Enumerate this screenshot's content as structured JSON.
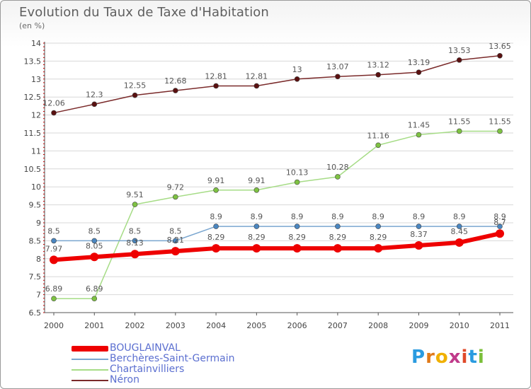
{
  "title": "Evolution du Taux de Taxe d'Habitation",
  "unit_label": "(en %)",
  "logo_text": "Proxiti",
  "chart_data": {
    "type": "line",
    "title": "Evolution du Taux de Taxe d'Habitation",
    "ylabel": "(en %)",
    "xlabel": "",
    "x": [
      "2000",
      "2001",
      "2002",
      "2003",
      "2004",
      "2005",
      "2006",
      "2007",
      "2008",
      "2009",
      "2010",
      "2011"
    ],
    "ylim": [
      6.5,
      14
    ],
    "yticks": [
      6.5,
      7,
      7.5,
      8,
      8.5,
      9,
      9.5,
      10,
      10.5,
      11,
      11.5,
      12,
      12.5,
      13,
      13.5,
      14
    ],
    "grid": "horizontal",
    "legend_position": "bottom-left",
    "series": [
      {
        "name": "Néron",
        "color": "#7a2a2a",
        "point_color": "#5a1010",
        "values": [
          12.06,
          12.3,
          12.55,
          12.68,
          12.81,
          12.81,
          13,
          13.07,
          13.12,
          13.19,
          13.53,
          13.65
        ],
        "labels": [
          "12.06",
          "12.3",
          "12.55",
          "12.68",
          "12.81",
          "12.81",
          "13",
          "13.07",
          "13.12",
          "13.19",
          "13.53",
          "13.65"
        ]
      },
      {
        "name": "Chartainvilliers",
        "color": "#a6dc86",
        "point_color": "#7ec242",
        "values": [
          6.89,
          6.89,
          9.51,
          9.72,
          9.91,
          9.91,
          10.13,
          10.28,
          11.16,
          11.45,
          11.55,
          11.55
        ],
        "labels": [
          "6.89",
          "6.89",
          "9.51",
          "9.72",
          "9.91",
          "9.91",
          "10.13",
          "10.28",
          "11.16",
          "11.45",
          "11.55",
          "11.55"
        ]
      },
      {
        "name": "Berchères-Saint-Germain",
        "color": "#7aa6d0",
        "point_color": "#4a86c0",
        "values": [
          8.5,
          8.5,
          8.5,
          8.5,
          8.9,
          8.9,
          8.9,
          8.9,
          8.9,
          8.9,
          8.9,
          8.9
        ],
        "labels": [
          "8.5",
          "8.5",
          "8.5",
          "8.5",
          "8.9",
          "8.9",
          "8.9",
          "8.9",
          "8.9",
          "8.9",
          "8.9",
          "8.9"
        ]
      },
      {
        "name": "BOUGLAINVAL",
        "color": "#ee0000",
        "point_color": "#ee0000",
        "values": [
          7.97,
          8.05,
          8.13,
          8.21,
          8.29,
          8.29,
          8.29,
          8.29,
          8.29,
          8.37,
          8.45,
          8.7
        ],
        "labels": [
          "7.97",
          "8.05",
          "8.13",
          "8.21",
          "8.29",
          "8.29",
          "8.29",
          "8.29",
          "8.29",
          "8.37",
          "8.45",
          "8.7"
        ]
      }
    ],
    "legend_order": [
      "BOUGLAINVAL",
      "Berchères-Saint-Germain",
      "Chartainvilliers",
      "Néron"
    ]
  }
}
